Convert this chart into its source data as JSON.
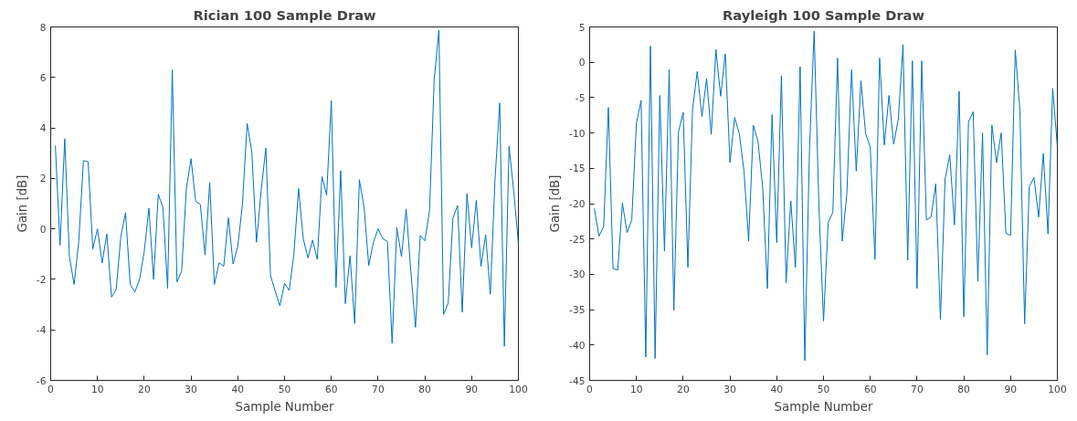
{
  "chart_data": [
    {
      "type": "line",
      "title": "Rician 100 Sample Draw",
      "xlabel": "Sample Number",
      "ylabel": "Gain [dB]",
      "xlim": [
        0,
        100
      ],
      "ylim": [
        -6,
        8
      ],
      "xticks": [
        0,
        10,
        20,
        30,
        40,
        50,
        60,
        70,
        80,
        90,
        100
      ],
      "yticks": [
        -6,
        -4,
        -2,
        0,
        2,
        4,
        6,
        8
      ],
      "grid": false,
      "x": [
        1,
        2,
        3,
        4,
        5,
        6,
        7,
        8,
        9,
        10,
        11,
        12,
        13,
        14,
        15,
        16,
        17,
        18,
        19,
        20,
        21,
        22,
        23,
        24,
        25,
        26,
        27,
        28,
        29,
        30,
        31,
        32,
        33,
        34,
        35,
        36,
        37,
        38,
        39,
        40,
        41,
        42,
        43,
        44,
        45,
        46,
        47,
        48,
        49,
        50,
        51,
        52,
        53,
        54,
        55,
        56,
        57,
        58,
        59,
        60,
        61,
        62,
        63,
        64,
        65,
        66,
        67,
        68,
        69,
        70,
        71,
        72,
        73,
        74,
        75,
        76,
        77,
        78,
        79,
        80,
        81,
        82,
        83,
        84,
        85,
        86,
        87,
        88,
        89,
        90,
        91,
        92,
        93,
        94,
        95,
        96,
        97,
        98,
        99,
        100
      ],
      "series": [
        {
          "color": "#0072bd",
          "values": [
            3.3,
            -0.65,
            3.57,
            -1.1,
            -2.2,
            -0.5,
            2.7,
            2.66,
            -0.8,
            0,
            -1.35,
            -0.2,
            -2.7,
            -2.4,
            -0.3,
            0.64,
            -2.2,
            -2.5,
            -2.0,
            -0.9,
            0.82,
            -2.0,
            1.37,
            0.85,
            -2.35,
            6.3,
            -2.1,
            -1.67,
            1.58,
            2.78,
            1.09,
            0.97,
            -1.03,
            1.83,
            -2.2,
            -1.34,
            -1.48,
            0.44,
            -1.39,
            -0.69,
            0.97,
            4.18,
            3.05,
            -0.53,
            1.52,
            3.2,
            -1.85,
            -2.47,
            -3.05,
            -2.16,
            -2.44,
            -1.0,
            1.6,
            -0.38,
            -1.15,
            -0.44,
            -1.21,
            2.07,
            1.34,
            5.08,
            -2.32,
            2.3,
            -2.96,
            -1.06,
            -3.75,
            1.95,
            0.85,
            -1.45,
            -0.53,
            0.0,
            -0.38,
            -0.5,
            -4.53,
            0.05,
            -1.1,
            0.79,
            -1.67,
            -3.9,
            -0.26,
            -0.47,
            0.72,
            5.94,
            7.87,
            -3.39,
            -2.93,
            0.42,
            0.93,
            -3.3,
            1.4,
            -0.75,
            1.13,
            -1.48,
            -0.23,
            -2.59,
            1.95,
            4.99,
            -4.65,
            3.28,
            1.5,
            -0.6
          ]
        }
      ]
    },
    {
      "type": "line",
      "title": "Rayleigh 100 Sample Draw",
      "xlabel": "Sample Number",
      "ylabel": "Gain [dB]",
      "xlim": [
        0,
        100
      ],
      "ylim": [
        -45,
        5
      ],
      "xticks": [
        0,
        10,
        20,
        30,
        40,
        50,
        60,
        70,
        80,
        90,
        100
      ],
      "yticks": [
        -45,
        -40,
        -35,
        -30,
        -25,
        -20,
        -15,
        -10,
        -5,
        0,
        5
      ],
      "grid": false,
      "x": [
        1,
        2,
        3,
        4,
        5,
        6,
        7,
        8,
        9,
        10,
        11,
        12,
        13,
        14,
        15,
        16,
        17,
        18,
        19,
        20,
        21,
        22,
        23,
        24,
        25,
        26,
        27,
        28,
        29,
        30,
        31,
        32,
        33,
        34,
        35,
        36,
        37,
        38,
        39,
        40,
        41,
        42,
        43,
        44,
        45,
        46,
        47,
        48,
        49,
        50,
        51,
        52,
        53,
        54,
        55,
        56,
        57,
        58,
        59,
        60,
        61,
        62,
        63,
        64,
        65,
        66,
        67,
        68,
        69,
        70,
        71,
        72,
        73,
        74,
        75,
        76,
        77,
        78,
        79,
        80,
        81,
        82,
        83,
        84,
        85,
        86,
        87,
        88,
        89,
        90,
        91,
        92,
        93,
        94,
        95,
        96,
        97,
        98,
        99,
        100
      ],
      "series": [
        {
          "color": "#0072bd",
          "values": [
            -20.7,
            -24.6,
            -23.2,
            -6.4,
            -29.2,
            -29.4,
            -19.9,
            -24.1,
            -22.3,
            -8.6,
            -5.4,
            -41.7,
            2.3,
            -41.9,
            -4.7,
            -26.7,
            -1.05,
            -35.1,
            -9.8,
            -7.1,
            -29.0,
            -6.7,
            -1.3,
            -7.7,
            -2.3,
            -10.2,
            1.8,
            -4.8,
            1.2,
            -14.2,
            -7.8,
            -10.1,
            -15.4,
            -25.3,
            -8.9,
            -11.2,
            -17.8,
            -32.0,
            -7.4,
            -25.5,
            -1.9,
            -31.2,
            -19.6,
            -29.0,
            -0.6,
            -42.2,
            -12.4,
            4.4,
            -20.0,
            -36.6,
            -22.7,
            -21.2,
            0.6,
            -25.3,
            -18.5,
            -1.05,
            -15.4,
            -2.6,
            -10.1,
            -12.0,
            -27.9,
            0.6,
            -11.7,
            -4.7,
            -11.6,
            -8.0,
            2.5,
            -28.0,
            0.2,
            -32.0,
            0.2,
            -22.3,
            -21.9,
            -17.2,
            -36.4,
            -16.5,
            -13.1,
            -23.0,
            -4.1,
            -36.0,
            -8.4,
            -7.0,
            -31.0,
            -10.0,
            -41.4,
            -8.9,
            -14.2,
            -10.0,
            -24.2,
            -24.5,
            1.75,
            -6.9,
            -37.0,
            -17.6,
            -16.3,
            -21.9,
            -12.9,
            -24.3,
            -3.7,
            -11.9
          ]
        }
      ]
    }
  ]
}
